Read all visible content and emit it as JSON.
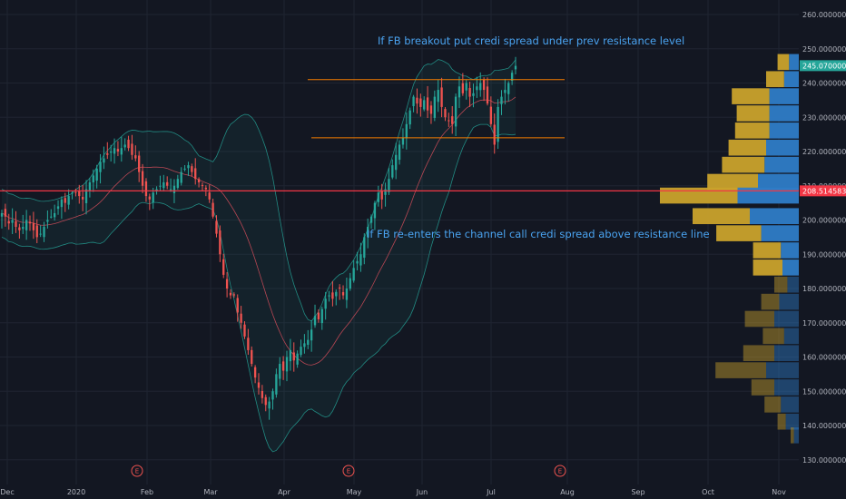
{
  "chart_data": {
    "type": "candlestick",
    "symbol": "FB",
    "annotations": [
      {
        "id": "note-breakout",
        "text": "If FB breakout put credi spread under prev resistance level",
        "color": "#4aa3f0"
      },
      {
        "id": "note-reenter",
        "text": "If FB re-enters the channel call credi spread above resistance line",
        "color": "#4aa3f0"
      }
    ],
    "price_axis": {
      "ylim": [
        125,
        265
      ],
      "ticks": [
        {
          "value": 260,
          "label": "260.00000000"
        },
        {
          "value": 250,
          "label": "250.00000000"
        },
        {
          "value": 240,
          "label": "240.00000000"
        },
        {
          "value": 230,
          "label": "230.00000000"
        },
        {
          "value": 220,
          "label": "220.00000000"
        },
        {
          "value": 210,
          "label": "210.00000000"
        },
        {
          "value": 200,
          "label": "200.00000000"
        },
        {
          "value": 190,
          "label": "190.00000000"
        },
        {
          "value": 180,
          "label": "180.00000000"
        },
        {
          "value": 170,
          "label": "170.00000000"
        },
        {
          "value": 160,
          "label": "160.00000000"
        },
        {
          "value": 150,
          "label": "150.00000000"
        },
        {
          "value": 140,
          "label": "140.00000000"
        },
        {
          "value": 130,
          "label": "130.00000000"
        }
      ]
    },
    "time_axis": {
      "ticks": [
        "Dec",
        "2020",
        "Feb",
        "Mar",
        "Apr",
        "May",
        "Jun",
        "Jul",
        "Aug",
        "Sep",
        "Oct",
        "Nov"
      ]
    },
    "price_tags": [
      {
        "value": 245.07,
        "label": "245.07000000",
        "color": "#26a69a"
      },
      {
        "value": 208.51458333,
        "label": "208.51458333",
        "color": "#f23645"
      }
    ],
    "horizontal_lines": [
      {
        "value": 241.0,
        "color": "#f57c00",
        "x_start": "May",
        "x_end": "Jul",
        "label": ""
      },
      {
        "value": 224.0,
        "color": "#f57c00",
        "x_start": "May",
        "x_end": "Jul",
        "label": ""
      },
      {
        "value": 208.51,
        "color": "#f23645",
        "full_width": true,
        "label": ""
      }
    ],
    "earnings_markers": [
      {
        "at": "Feb",
        "label": "E"
      },
      {
        "at": "May",
        "label": "E"
      },
      {
        "at": "Jul",
        "label": "E"
      }
    ],
    "closes": [
      202,
      201,
      199,
      200,
      198,
      197,
      198,
      200,
      199,
      197,
      195,
      196,
      198,
      200,
      201,
      202,
      204,
      206,
      205,
      207,
      208,
      208,
      207,
      206,
      209,
      211,
      213,
      215,
      217,
      218,
      219,
      220,
      221,
      220,
      221,
      222,
      221,
      219,
      218,
      214,
      210,
      207,
      206,
      208,
      209,
      210,
      211,
      210,
      209,
      210,
      212,
      214,
      215,
      216,
      214,
      212,
      211,
      210,
      209,
      206,
      201,
      196,
      190,
      184,
      180,
      178,
      178,
      173,
      170,
      166,
      162,
      158,
      154,
      151,
      148,
      146,
      147,
      150,
      155,
      158,
      156,
      160,
      162,
      159,
      161,
      163,
      164,
      165,
      168,
      172,
      171,
      174,
      177,
      178,
      177,
      179,
      180,
      178,
      180,
      183,
      186,
      188,
      190,
      195,
      198,
      201,
      205,
      208,
      206,
      209,
      212,
      216,
      219,
      222,
      224,
      228,
      232,
      236,
      234,
      233,
      235,
      232,
      231,
      236,
      238,
      233,
      230,
      229,
      228,
      236,
      239,
      237,
      240,
      236,
      237,
      239,
      240,
      238,
      234,
      228,
      222,
      233,
      236,
      238,
      240,
      243,
      245
    ],
    "bollinger": {
      "period": 20,
      "stddev": 2,
      "colors": {
        "band": "#26a69a",
        "basis": "#e0505e"
      }
    },
    "volume_profile": {
      "rows": [
        {
          "price": 246,
          "up": 12,
          "down": 14
        },
        {
          "price": 241,
          "up": 18,
          "down": 22
        },
        {
          "price": 236,
          "up": 36,
          "down": 46
        },
        {
          "price": 231,
          "up": 36,
          "down": 40
        },
        {
          "price": 226,
          "up": 36,
          "down": 42
        },
        {
          "price": 221,
          "up": 40,
          "down": 46
        },
        {
          "price": 216,
          "up": 42,
          "down": 52
        },
        {
          "price": 211,
          "up": 50,
          "down": 62
        },
        {
          "price": 207,
          "up": 75,
          "down": 95
        },
        {
          "price": 201,
          "up": 60,
          "down": 70
        },
        {
          "price": 196,
          "up": 46,
          "down": 55
        },
        {
          "price": 191,
          "up": 22,
          "down": 34
        },
        {
          "price": 186,
          "up": 20,
          "down": 36
        },
        {
          "price": 181,
          "up": 14,
          "down": 16
        },
        {
          "price": 176,
          "up": 24,
          "down": 22
        },
        {
          "price": 171,
          "up": 30,
          "down": 36
        },
        {
          "price": 166,
          "up": 18,
          "down": 26
        },
        {
          "price": 161,
          "up": 30,
          "down": 38
        },
        {
          "price": 156,
          "up": 40,
          "down": 62
        },
        {
          "price": 151,
          "up": 30,
          "down": 28
        },
        {
          "price": 146,
          "up": 22,
          "down": 20
        },
        {
          "price": 141,
          "up": 16,
          "down": 10
        },
        {
          "price": 137,
          "up": 6,
          "down": 4
        }
      ],
      "colors": {
        "up": "#2e7cc7",
        "down": "#c9a22c"
      },
      "value_area": [
        185,
        248
      ]
    },
    "colors": {
      "up": "#26a69a",
      "down": "#ef5350",
      "background": "#131722",
      "grid": "#1f2431",
      "text": "#b2b5be"
    }
  }
}
